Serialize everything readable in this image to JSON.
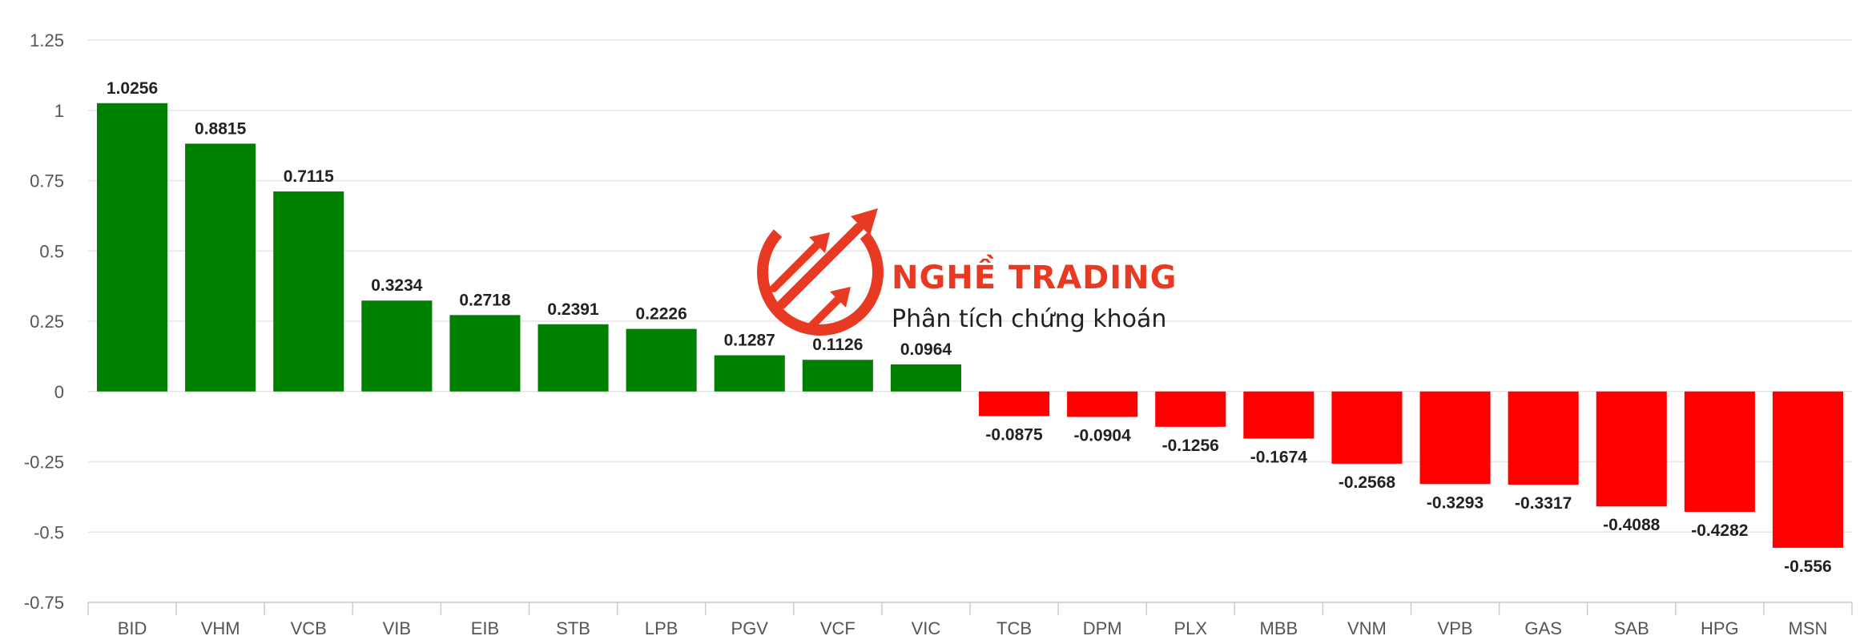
{
  "chart_data": {
    "type": "bar",
    "categories": [
      "BID",
      "VHM",
      "VCB",
      "VIB",
      "EIB",
      "STB",
      "LPB",
      "PGV",
      "VCF",
      "VIC",
      "TCB",
      "DPM",
      "PLX",
      "MBB",
      "VNM",
      "VPB",
      "GAS",
      "SAB",
      "HPG",
      "MSN"
    ],
    "values": [
      1.0256,
      0.8815,
      0.7115,
      0.3234,
      0.2718,
      0.2391,
      0.2226,
      0.1287,
      0.1126,
      0.0964,
      -0.0875,
      -0.0904,
      -0.1256,
      -0.1674,
      -0.2568,
      -0.3293,
      -0.3317,
      -0.4088,
      -0.4282,
      -0.556
    ],
    "value_labels": [
      "1.0256",
      "0.8815",
      "0.7115",
      "0.3234",
      "0.2718",
      "0.2391",
      "0.2226",
      "0.1287",
      "0.1126",
      "0.0964",
      "-0.0875",
      "-0.0904",
      "-0.1256",
      "-0.1674",
      "-0.2568",
      "-0.3293",
      "-0.3317",
      "-0.4088",
      "-0.4282",
      "-0.556"
    ],
    "yticks": [
      "1.25",
      "1",
      "0.75",
      "0.5",
      "0.25",
      "0",
      "-0.25",
      "-0.5",
      "-0.75"
    ],
    "ylim": [
      -0.75,
      1.25
    ],
    "positive_color": "#008000",
    "negative_color": "#ff0000",
    "grid": true
  },
  "watermark": {
    "brand": "NGHỀ TRADING",
    "tagline": "Phân tích chứng khoán",
    "color": "#e8341c",
    "icon": "trend-arrows-logo"
  }
}
